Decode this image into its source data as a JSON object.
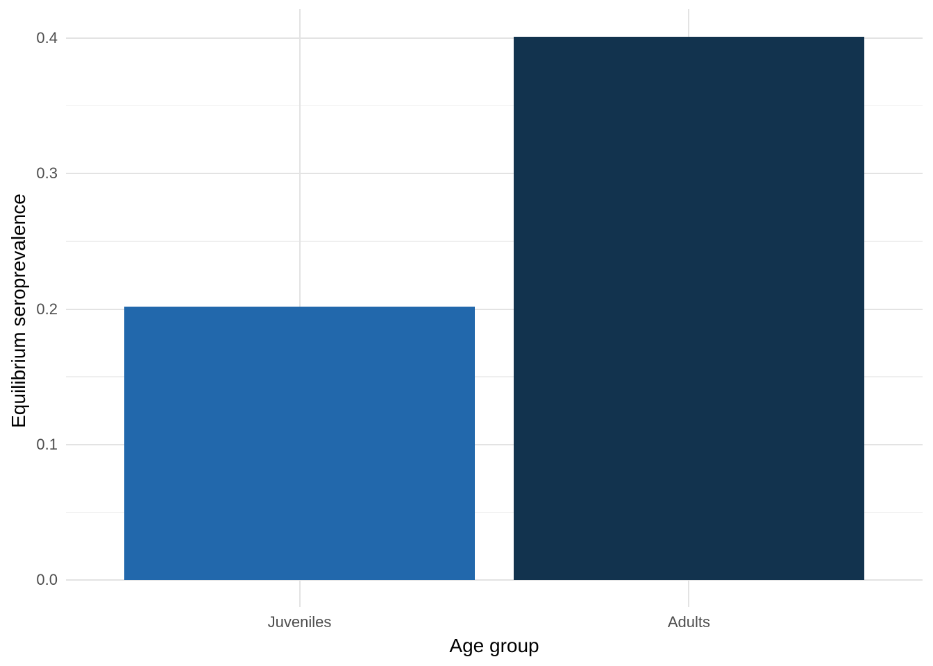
{
  "chart_data": {
    "type": "bar",
    "title": "",
    "xlabel": "Age group",
    "ylabel": "Equilibrium seroprevalence",
    "categories": [
      "Juveniles",
      "Adults"
    ],
    "values": [
      0.202,
      0.401
    ],
    "bar_colors": [
      "#2268AC",
      "#12334E"
    ],
    "ylim": [
      -0.02,
      0.4216
    ],
    "y_major_ticks": [
      0,
      0.1,
      0.2,
      0.3,
      0.4
    ],
    "y_tick_labels": [
      "0.0",
      "0.1",
      "0.2",
      "0.3",
      "0.4"
    ],
    "y_minor_ticks": [
      0.05,
      0.15,
      0.25,
      0.35
    ],
    "bar_width_rel": 0.9,
    "grid": "major-and-minor",
    "legend": "none",
    "background_color": "#FFFFFF",
    "grid_major_color": "#E3E3E3",
    "grid_minor_color": "#EFEFEF",
    "tick_label_color": "#4D4D4D",
    "axis_title_color": "#000000"
  }
}
